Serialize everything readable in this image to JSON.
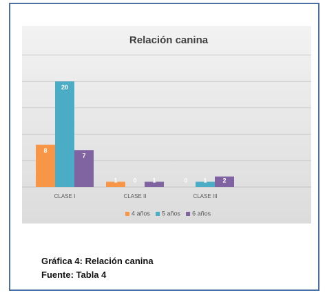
{
  "chart_data": {
    "type": "bar",
    "title": "Relación canina",
    "categories": [
      "CLASE I",
      "CLASE II",
      "CLASE III"
    ],
    "series": [
      {
        "name": "4 años",
        "color": "#f79646",
        "values": [
          8,
          1,
          0
        ]
      },
      {
        "name": "5 años",
        "color": "#4bacc6",
        "values": [
          20,
          0,
          1
        ]
      },
      {
        "name": "6 años",
        "color": "#8064a2",
        "values": [
          7,
          1,
          2
        ]
      }
    ],
    "ylim": [
      0,
      25
    ],
    "yticks": [
      0,
      5,
      10,
      15,
      20,
      25
    ],
    "grid": true,
    "legend": "bottom"
  },
  "caption": {
    "figure": "Gráfica 4: Relación canina",
    "source": "Fuente: Tabla 4"
  }
}
